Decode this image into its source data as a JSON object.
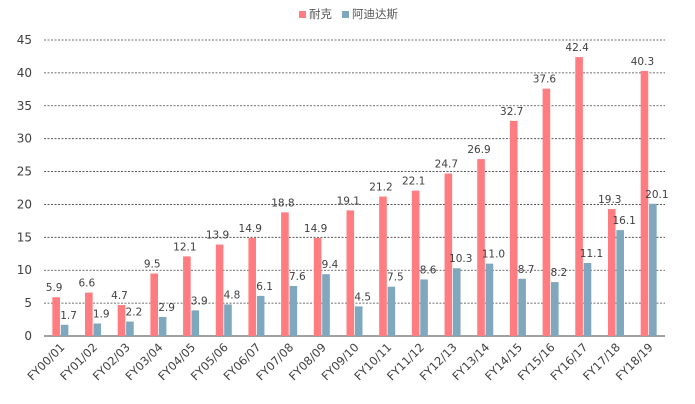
{
  "chart_data": {
    "type": "bar",
    "categories": [
      "FY00/01",
      "FY01/02",
      "FY02/03",
      "FY03/04",
      "FY04/05",
      "FY05/06",
      "FY06/07",
      "FY07/08",
      "FY08/09",
      "FY09/10",
      "FY10/11",
      "FY11/12",
      "FY12/13",
      "FY13/14",
      "FY14/15",
      "FY15/16",
      "FY16/17",
      "FY17/18",
      "FY18/19"
    ],
    "series": [
      {
        "name": "耐克",
        "color": "#FF7C80",
        "values": [
          5.9,
          6.6,
          4.7,
          9.5,
          12.1,
          13.9,
          14.9,
          18.8,
          14.9,
          19.1,
          21.2,
          22.1,
          24.7,
          26.9,
          32.7,
          37.6,
          42.4,
          19.3,
          40.3
        ],
        "labels": [
          "5.9",
          "6.6",
          "4.7",
          "9.5",
          "12.1",
          "13.9",
          "14.9",
          "18.8",
          "14.9",
          "19.1",
          "21.2",
          "22.1",
          "24.7",
          "26.9",
          "32.7",
          "37.6",
          "42.4",
          "19.3",
          "40.3"
        ]
      },
      {
        "name": "阿迪达斯",
        "color": "#7FA7BE",
        "values": [
          1.7,
          1.9,
          2.2,
          2.9,
          3.9,
          4.8,
          6.1,
          7.6,
          9.4,
          4.5,
          7.5,
          8.6,
          10.3,
          11.0,
          8.7,
          8.2,
          11.1,
          16.1,
          20.1
        ],
        "labels": [
          "1.7",
          "1.9",
          "2.2",
          "2.9",
          "3.9",
          "4.8",
          "6.1",
          "7.6",
          "9.4",
          "4.5",
          "7.5",
          "8.6",
          "10.3",
          "11.0",
          "8.7",
          "8.2",
          "11.1",
          "16.1",
          "20.1"
        ]
      }
    ],
    "yticks": [
      "0",
      "5",
      "10",
      "15",
      "20",
      "25",
      "30",
      "35",
      "40",
      "45"
    ],
    "ylim": [
      0,
      45
    ],
    "grid": true,
    "gridStyle": "dashed",
    "legend": "top-center",
    "title": "",
    "xlabel": "",
    "ylabel": ""
  }
}
